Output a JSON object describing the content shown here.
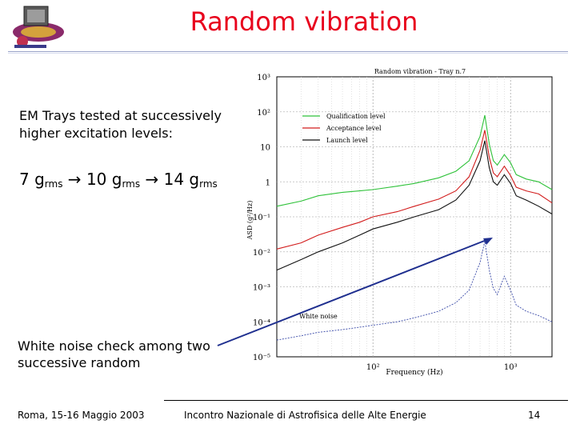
{
  "slide": {
    "title": "Random vibration",
    "intro": "EM Trays tested at successively higher excitation levels:",
    "levels": {
      "g1": "7 g",
      "g2": "10 g",
      "g3": "14 g",
      "sub": "rms",
      "arrow": " → "
    },
    "white_note": "White noise check among two successive random"
  },
  "footer": {
    "left": "Roma, 15-16 Maggio 2003",
    "center": "Incontro Nazionale di Astrofisica delle Alte Energie",
    "page": "14"
  },
  "chart_data": {
    "type": "line",
    "title": "Random vibration - Tray n.7",
    "xlabel": "Frequency (Hz)",
    "ylabel": "ASD (g²/Hz)",
    "xscale": "log",
    "yscale": "log",
    "xlim": [
      20,
      2000
    ],
    "ylim": [
      1e-05,
      1000
    ],
    "y_ticks": [
      "10³",
      "10²",
      "10",
      "1",
      "10⁻¹",
      "10⁻²",
      "10⁻³",
      "10⁻⁴",
      "10⁻⁵"
    ],
    "x_ticks": [
      "10²",
      "10³"
    ],
    "legend": [
      "Qualification level",
      "Acceptance level",
      "Launch level"
    ],
    "annotation": "White noise",
    "series": [
      {
        "name": "Qualification level",
        "color": "#2fc23a",
        "x": [
          20,
          30,
          40,
          60,
          80,
          100,
          150,
          200,
          300,
          400,
          500,
          600,
          650,
          700,
          750,
          800,
          900,
          1000,
          1100,
          1300,
          1600,
          2000
        ],
        "y": [
          0.2,
          0.28,
          0.4,
          0.5,
          0.55,
          0.6,
          0.75,
          0.9,
          1.3,
          2.0,
          4.0,
          20,
          80,
          12,
          4,
          3,
          6,
          3.5,
          1.6,
          1.2,
          1.0,
          0.6
        ]
      },
      {
        "name": "Acceptance level",
        "color": "#d21c1c",
        "x": [
          20,
          30,
          40,
          60,
          80,
          100,
          150,
          200,
          300,
          400,
          500,
          600,
          650,
          700,
          750,
          800,
          900,
          1000,
          1100,
          1300,
          1600,
          2000
        ],
        "y": [
          0.012,
          0.018,
          0.03,
          0.05,
          0.07,
          0.1,
          0.14,
          0.2,
          0.32,
          0.55,
          1.4,
          8,
          30,
          5,
          1.8,
          1.4,
          2.8,
          1.5,
          0.7,
          0.55,
          0.45,
          0.25
        ]
      },
      {
        "name": "Launch level",
        "color": "#111111",
        "x": [
          20,
          30,
          40,
          60,
          80,
          100,
          150,
          200,
          300,
          400,
          500,
          600,
          650,
          700,
          750,
          800,
          900,
          1000,
          1100,
          1300,
          1600,
          2000
        ],
        "y": [
          0.003,
          0.006,
          0.01,
          0.018,
          0.03,
          0.045,
          0.07,
          0.1,
          0.16,
          0.3,
          0.8,
          4,
          15,
          2.5,
          1.0,
          0.8,
          1.6,
          0.9,
          0.4,
          0.3,
          0.2,
          0.12
        ]
      },
      {
        "name": "White noise",
        "color": "#3a4aa8",
        "x": [
          20,
          30,
          40,
          60,
          80,
          100,
          150,
          200,
          300,
          400,
          500,
          600,
          650,
          700,
          750,
          800,
          900,
          1000,
          1100,
          1300,
          1600,
          2000
        ],
        "y": [
          3e-05,
          4e-05,
          5e-05,
          6e-05,
          7e-05,
          8e-05,
          0.0001,
          0.00013,
          0.0002,
          0.00035,
          0.0008,
          0.005,
          0.02,
          0.003,
          0.0009,
          0.0006,
          0.002,
          0.0008,
          0.0003,
          0.0002,
          0.00015,
          0.0001
        ]
      }
    ]
  },
  "colors": {
    "title": "#e8001c",
    "arrow": "#1f2f8f"
  }
}
